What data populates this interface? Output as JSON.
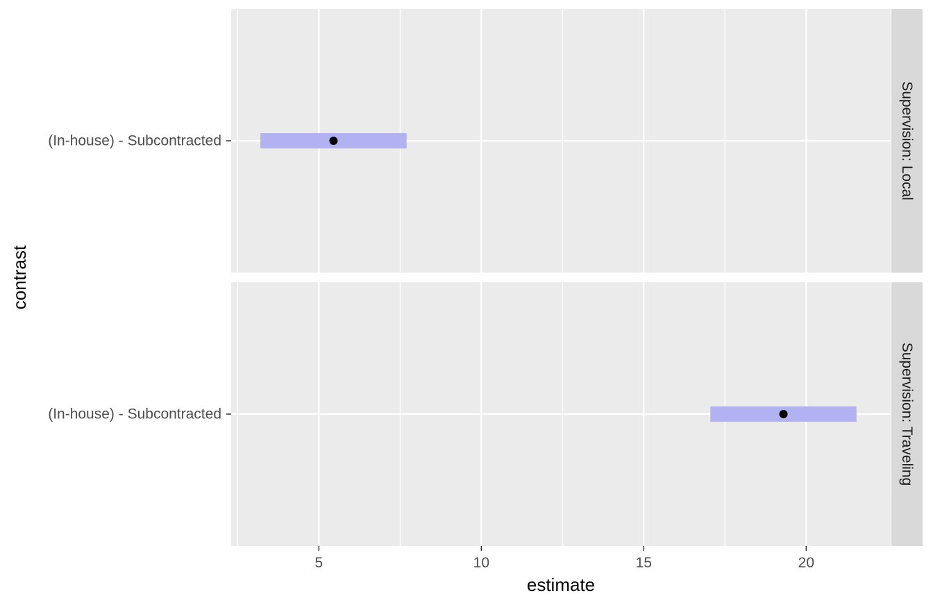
{
  "chart_data": {
    "type": "errorbar",
    "xlabel": "estimate",
    "ylabel": "contrast",
    "xlim": [
      2.3,
      22.6
    ],
    "x_ticks": [
      5,
      10,
      15,
      20
    ],
    "x_tick_labels": [
      "5",
      "10",
      "15",
      "20"
    ],
    "grid": true,
    "facet_strip_position": "right",
    "colors": {
      "panel_background": "#EBEBEB",
      "strip_background": "#D9D9D9",
      "gridline": "#FFFFFF",
      "interval_fill": "#B2B2F2",
      "point": "#000000",
      "text": "#1A1A1A",
      "axis_text": "#4D4D4D"
    },
    "facets": [
      {
        "strip_label": "Supervision: Local",
        "category": "(In-house) - Subcontracted",
        "estimate": 5.45,
        "lower": 3.2,
        "upper": 7.7
      },
      {
        "strip_label": "Supervision: Traveling",
        "category": "(In-house) - Subcontracted",
        "estimate": 19.3,
        "lower": 17.05,
        "upper": 21.55
      }
    ]
  }
}
